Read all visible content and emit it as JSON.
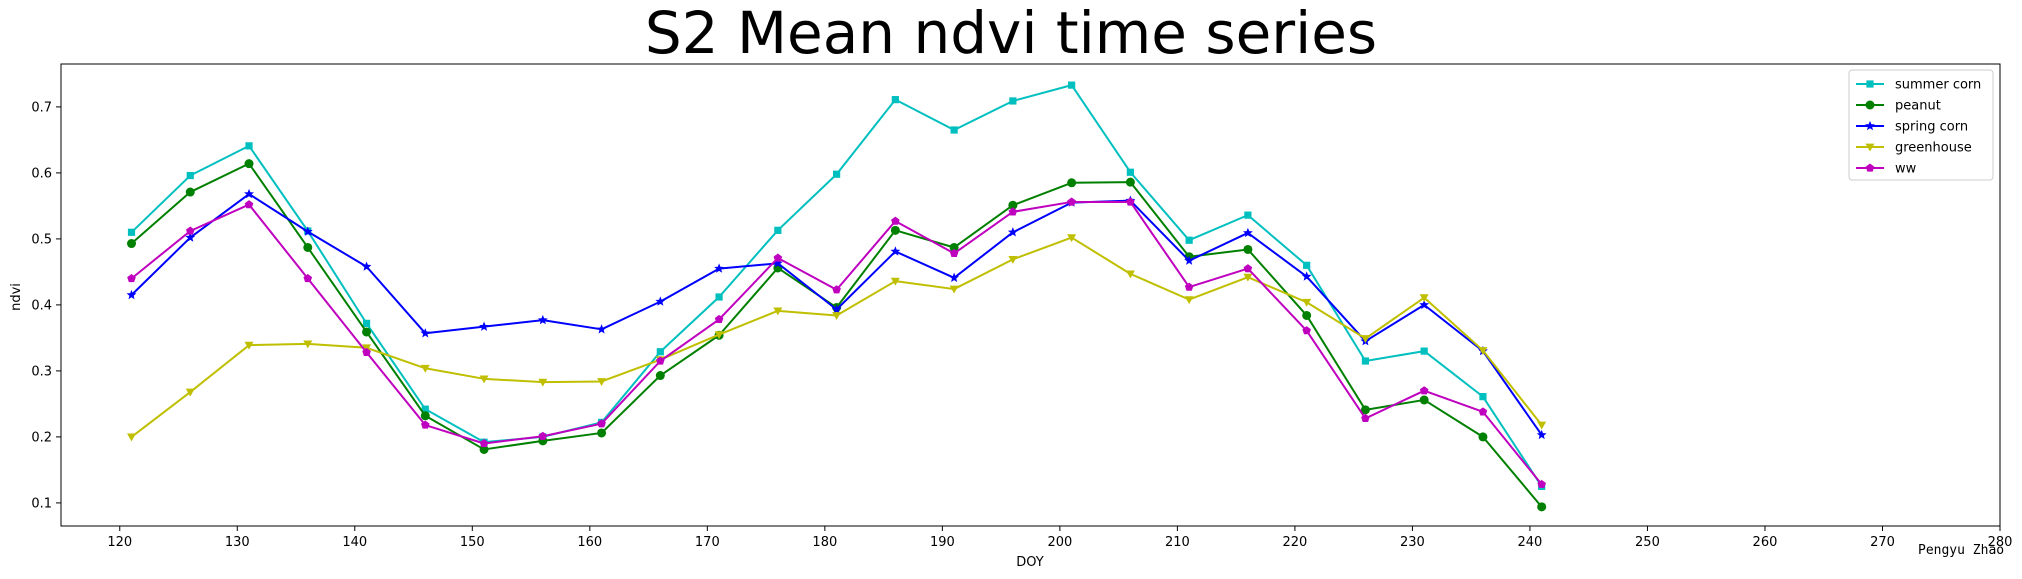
{
  "chart_data": {
    "type": "line",
    "title": "S2 Mean ndvi time series",
    "xlabel": "DOY",
    "ylabel": "ndvi",
    "xlim": [
      115,
      280
    ],
    "ylim": [
      0.065,
      0.765
    ],
    "xticks": [
      120,
      130,
      140,
      150,
      160,
      170,
      180,
      190,
      200,
      210,
      220,
      230,
      240,
      250,
      260,
      270,
      280
    ],
    "yticks": [
      0.1,
      0.2,
      0.3,
      0.4,
      0.5,
      0.6,
      0.7
    ],
    "legend_position": "top-right",
    "grid": false,
    "x": [
      121,
      126,
      131,
      136,
      141,
      146,
      151,
      156,
      161,
      166,
      171,
      176,
      181,
      186,
      191,
      196,
      201,
      206,
      211,
      216,
      221,
      226,
      231,
      236,
      241
    ],
    "series": [
      {
        "name": "summer corn",
        "color": "#00bfbf",
        "marker": "square",
        "values": [
          0.51,
          0.596,
          0.641,
          0.512,
          0.372,
          0.242,
          0.192,
          0.2,
          0.222,
          0.329,
          0.412,
          0.513,
          0.598,
          0.711,
          0.665,
          0.709,
          0.733,
          0.601,
          0.498,
          0.536,
          0.46,
          0.315,
          0.33,
          0.261,
          0.125
        ]
      },
      {
        "name": "peanut",
        "color": "#008000",
        "marker": "circle",
        "values": [
          0.493,
          0.571,
          0.614,
          0.487,
          0.359,
          0.232,
          0.181,
          0.194,
          0.206,
          0.293,
          0.354,
          0.456,
          0.396,
          0.513,
          0.487,
          0.551,
          0.585,
          0.586,
          0.473,
          0.484,
          0.384,
          0.241,
          0.256,
          0.2,
          0.094
        ]
      },
      {
        "name": "spring corn",
        "color": "#0000ff",
        "marker": "star",
        "values": [
          0.415,
          0.502,
          0.568,
          0.511,
          0.458,
          0.357,
          0.367,
          0.377,
          0.363,
          0.405,
          0.455,
          0.463,
          0.393,
          0.481,
          0.441,
          0.51,
          0.555,
          0.558,
          0.467,
          0.509,
          0.443,
          0.345,
          0.4,
          0.33,
          0.203
        ]
      },
      {
        "name": "greenhouse",
        "color": "#bfbf00",
        "marker": "triangle_down",
        "values": [
          0.2,
          0.268,
          0.339,
          0.341,
          0.335,
          0.304,
          0.288,
          0.283,
          0.284,
          0.317,
          0.355,
          0.391,
          0.384,
          0.436,
          0.424,
          0.469,
          0.502,
          0.447,
          0.408,
          0.442,
          0.404,
          0.349,
          0.411,
          0.331,
          0.218
        ]
      },
      {
        "name": "ww",
        "color": "#bf00bf",
        "marker": "pentagon",
        "values": [
          0.44,
          0.512,
          0.552,
          0.44,
          0.328,
          0.218,
          0.19,
          0.201,
          0.22,
          0.315,
          0.378,
          0.471,
          0.423,
          0.527,
          0.478,
          0.541,
          0.556,
          0.556,
          0.427,
          0.455,
          0.361,
          0.228,
          0.27,
          0.238,
          0.128
        ]
      }
    ]
  },
  "credit": "Pengyu Zhao"
}
